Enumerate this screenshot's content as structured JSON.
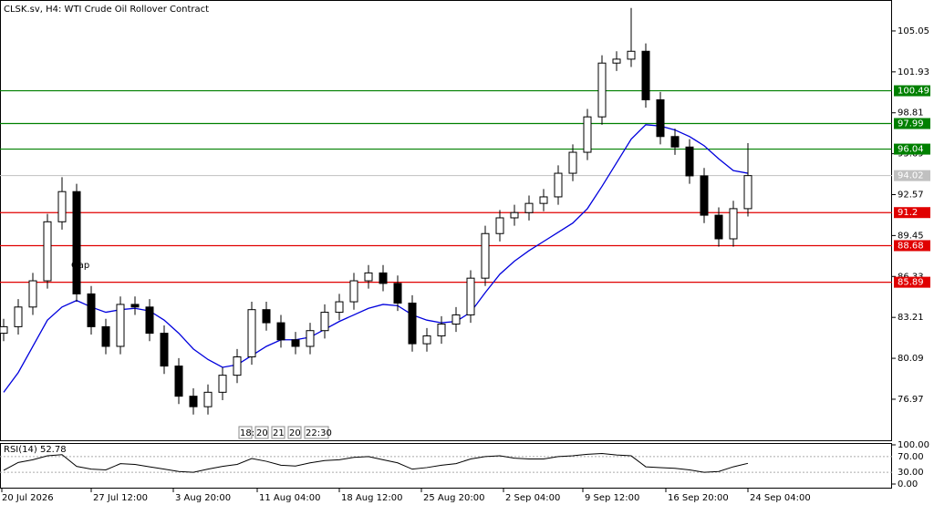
{
  "chart_data": {
    "type": "candlestick",
    "title": "CLSK.sv, H4:  WTI Crude Oil Rollover Contract",
    "annotation": "Gap",
    "time_markers": [
      "18:",
      "20",
      "21",
      "20",
      "22:30"
    ],
    "x_labels": [
      "20 Jul 2026",
      "27 Jul 12:00",
      "3 Aug 20:00",
      "11 Aug 04:00",
      "18 Aug 12:00",
      "25 Aug 20:00",
      "2 Sep 04:00",
      "9 Sep 12:00",
      "16 Sep 20:00",
      "24 Sep 04:00"
    ],
    "ylim": [
      73.77,
      107.41
    ],
    "yticks": [
      105.05,
      101.93,
      98.81,
      95.69,
      92.57,
      89.45,
      86.33,
      83.21,
      80.09,
      76.97
    ],
    "levels": [
      {
        "value": 100.49,
        "color": "#008000"
      },
      {
        "value": 97.99,
        "color": "#008000"
      },
      {
        "value": 96.04,
        "color": "#008000"
      },
      {
        "value": 91.2,
        "color": "#e00000"
      },
      {
        "value": 88.68,
        "color": "#e00000"
      },
      {
        "value": 85.89,
        "color": "#e00000"
      }
    ],
    "current_price": 94.02,
    "open": [
      82.0,
      82.5,
      84.0,
      86.0,
      90.5,
      92.8,
      85.0,
      82.5,
      81.0,
      84.2,
      84.0,
      82.0,
      79.5,
      77.2,
      76.4,
      77.5,
      78.8,
      80.2,
      83.8,
      82.8,
      81.5,
      81.0,
      82.2,
      83.6,
      84.4,
      86.0,
      86.6,
      85.8,
      84.3,
      81.2,
      81.8,
      82.7,
      83.4,
      86.2,
      89.6,
      90.8,
      91.2,
      91.9,
      92.4,
      94.2,
      95.8,
      98.5,
      102.6,
      102.9,
      103.5,
      99.8,
      97.0,
      96.2,
      94.0,
      91.0,
      89.2,
      91.5
    ],
    "high": [
      83.1,
      84.6,
      86.6,
      91.1,
      93.9,
      93.4,
      85.6,
      83.1,
      84.8,
      84.8,
      84.6,
      82.6,
      80.1,
      77.8,
      78.1,
      79.4,
      80.8,
      84.4,
      84.4,
      83.4,
      82.1,
      82.8,
      84.2,
      85.0,
      86.6,
      87.2,
      87.2,
      86.4,
      84.9,
      82.4,
      83.3,
      84.0,
      86.8,
      90.2,
      91.4,
      91.8,
      92.5,
      93.0,
      94.8,
      96.4,
      99.1,
      103.2,
      103.5,
      106.8,
      104.1,
      100.4,
      97.6,
      96.8,
      94.6,
      91.6,
      92.1,
      96.5
    ],
    "low": [
      81.4,
      81.9,
      83.4,
      85.4,
      89.9,
      84.4,
      81.9,
      80.4,
      80.4,
      83.4,
      81.4,
      78.9,
      76.6,
      75.8,
      75.8,
      76.9,
      78.2,
      79.6,
      82.2,
      80.9,
      80.4,
      80.4,
      81.6,
      83.0,
      83.8,
      85.4,
      85.2,
      83.7,
      80.6,
      80.6,
      81.2,
      82.1,
      82.8,
      85.6,
      89.0,
      90.2,
      90.6,
      91.3,
      91.8,
      93.6,
      95.2,
      97.9,
      102.0,
      102.3,
      99.2,
      96.4,
      95.6,
      93.4,
      90.4,
      88.6,
      88.6,
      90.9
    ],
    "close": [
      82.5,
      84.0,
      86.0,
      90.5,
      92.8,
      85.0,
      82.5,
      81.0,
      84.2,
      84.0,
      82.0,
      79.5,
      77.2,
      76.4,
      77.5,
      78.8,
      80.2,
      83.8,
      82.8,
      81.5,
      81.0,
      82.2,
      83.6,
      84.4,
      86.0,
      86.6,
      85.8,
      84.3,
      81.2,
      81.8,
      82.7,
      83.4,
      86.2,
      89.6,
      90.8,
      91.2,
      91.9,
      92.4,
      94.2,
      95.8,
      98.5,
      102.6,
      102.9,
      103.5,
      99.8,
      97.0,
      96.2,
      94.0,
      91.0,
      89.2,
      91.5,
      94.02
    ],
    "ma": {
      "color": "#0000dd",
      "values": [
        77.5,
        79,
        81,
        83,
        84,
        84.5,
        84,
        83.6,
        83.8,
        83.9,
        83.7,
        83,
        82,
        80.8,
        80,
        79.4,
        79.6,
        80.3,
        81,
        81.5,
        81.5,
        81.7,
        82.3,
        82.9,
        83.4,
        83.9,
        84.2,
        84.1,
        83.4,
        83,
        82.8,
        82.9,
        83.6,
        85.1,
        86.5,
        87.5,
        88.3,
        89,
        89.7,
        90.4,
        91.5,
        93.2,
        95,
        96.8,
        97.9,
        97.8,
        97.5,
        97,
        96.3,
        95.3,
        94.4,
        94.2
      ]
    },
    "rsi": {
      "label": "RSI(14) 52.78",
      "ylim": [
        0,
        100
      ],
      "yticks": [
        {
          "value": 100,
          "label": "100.00"
        },
        {
          "value": 70,
          "label": "70.00"
        },
        {
          "value": 30,
          "label": "30.00"
        },
        {
          "value": 0,
          "label": "0.00"
        }
      ],
      "values": [
        35,
        55,
        62,
        72,
        75,
        45,
        38,
        36,
        52,
        50,
        44,
        38,
        32,
        30,
        38,
        45,
        50,
        65,
        58,
        48,
        46,
        54,
        60,
        62,
        68,
        70,
        62,
        54,
        38,
        42,
        48,
        52,
        64,
        70,
        72,
        66,
        64,
        64,
        70,
        72,
        76,
        78,
        74,
        72,
        44,
        42,
        40,
        36,
        30,
        32,
        44,
        52.78
      ]
    }
  }
}
